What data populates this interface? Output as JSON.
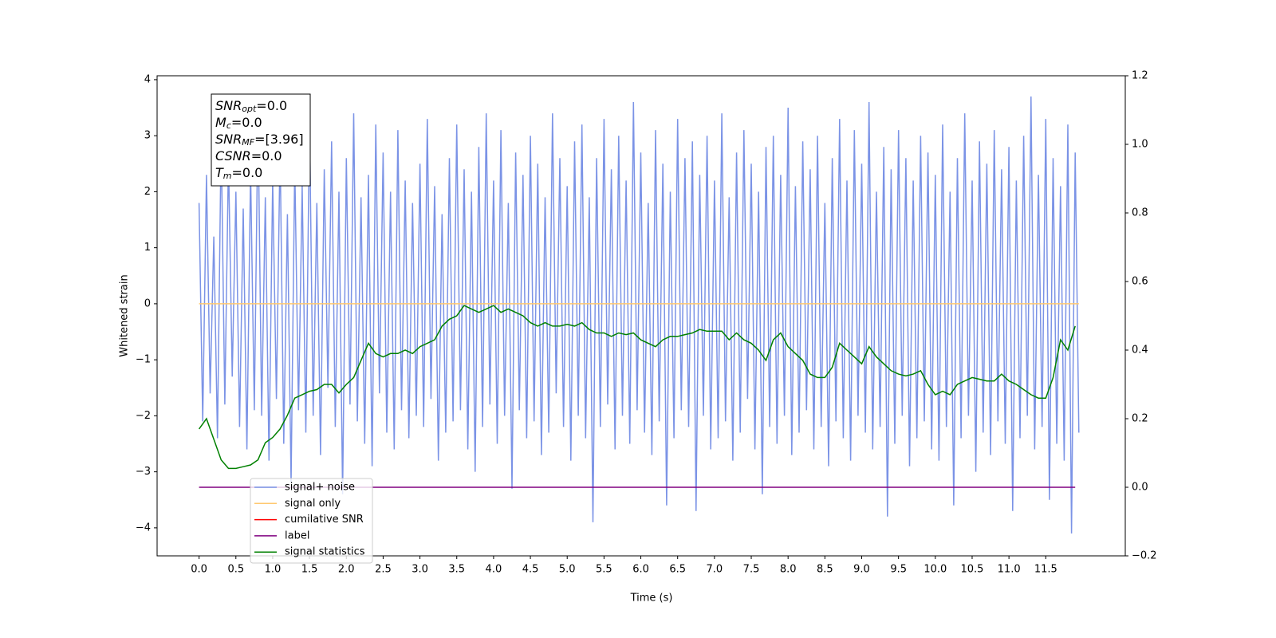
{
  "chart_data": {
    "type": "line",
    "xlabel": "Time (s)",
    "ylabel": "Whitened strain",
    "xlim": [
      -0.57,
      12.58
    ],
    "ylim": [
      -4.5,
      4.07
    ],
    "y2lim": [
      -0.2,
      1.2
    ],
    "xticks": [
      {
        "value": 0,
        "label": "0.0"
      },
      0.5,
      {
        "value": 1,
        "label": "1.0"
      },
      1.5,
      {
        "value": 2,
        "label": "2.0"
      },
      2.5,
      {
        "value": 3,
        "label": "3.0"
      },
      3.5,
      {
        "value": 4,
        "label": "4.0"
      },
      4.5,
      {
        "value": 5,
        "label": "5.0"
      },
      5.5,
      {
        "value": 6,
        "label": "6.0"
      },
      6.5,
      {
        "value": 7,
        "label": "7.0"
      },
      7.5,
      {
        "value": 8,
        "label": "8.0"
      },
      8.5,
      {
        "value": 9,
        "label": "9.0"
      },
      9.5,
      {
        "value": 10,
        "label": "10.0"
      },
      10.5,
      {
        "value": 11,
        "label": "11.0"
      },
      11.5
    ],
    "yticks": [
      {
        "value": -4,
        "label": "−4"
      },
      {
        "value": -3,
        "label": "−3"
      },
      {
        "value": -2,
        "label": "−2"
      },
      {
        "value": -1,
        "label": "−1"
      },
      0,
      1,
      2,
      3,
      4
    ],
    "y2ticks": [
      {
        "value": -0.2,
        "label": "−0.2"
      },
      {
        "value": 0,
        "label": "0.0"
      },
      0.2,
      0.4,
      0.6,
      0.8,
      {
        "value": 1,
        "label": "1.0"
      },
      1.2
    ],
    "annotation": [
      {
        "text": "SNR",
        "sub": "opt",
        "rest": "=0.0"
      },
      {
        "text": "M",
        "sub": "c",
        "rest": "=0.0"
      },
      {
        "text": "SNR",
        "sub": "MF",
        "rest": "=[3.96]"
      },
      {
        "text": "CSNR",
        "rest": "=0.0"
      },
      {
        "text": "T",
        "sub": "m",
        "rest": "=0.0"
      }
    ],
    "legend": "lower left",
    "x": [
      0,
      0.05,
      0.1,
      0.15,
      0.2,
      0.25,
      0.3,
      0.35,
      0.4,
      0.45,
      0.5,
      0.55,
      0.6,
      0.65,
      0.7,
      0.75,
      0.8,
      0.85,
      0.9,
      0.95,
      1,
      1.05,
      1.1,
      1.15,
      1.2,
      1.25,
      1.3,
      1.35,
      1.4,
      1.45,
      1.5,
      1.55,
      1.6,
      1.65,
      1.7,
      1.75,
      1.8,
      1.85,
      1.9,
      1.95,
      2,
      2.05,
      2.1,
      2.15,
      2.2,
      2.25,
      2.3,
      2.35,
      2.4,
      2.45,
      2.5,
      2.55,
      2.6,
      2.65,
      2.7,
      2.75,
      2.8,
      2.85,
      2.9,
      2.95,
      3,
      3.05,
      3.1,
      3.15,
      3.2,
      3.25,
      3.3,
      3.35,
      3.4,
      3.45,
      3.5,
      3.55,
      3.6,
      3.65,
      3.7,
      3.75,
      3.8,
      3.85,
      3.9,
      3.95,
      4,
      4.05,
      4.1,
      4.15,
      4.2,
      4.25,
      4.3,
      4.35,
      4.4,
      4.45,
      4.5,
      4.55,
      4.6,
      4.65,
      4.7,
      4.75,
      4.8,
      4.85,
      4.9,
      4.95,
      5,
      5.05,
      5.1,
      5.15,
      5.2,
      5.25,
      5.3,
      5.35,
      5.4,
      5.45,
      5.5,
      5.55,
      5.6,
      5.65,
      5.7,
      5.75,
      5.8,
      5.85,
      5.9,
      5.95,
      6,
      6.05,
      6.1,
      6.15,
      6.2,
      6.25,
      6.3,
      6.35,
      6.4,
      6.45,
      6.5,
      6.55,
      6.6,
      6.65,
      6.7,
      6.75,
      6.8,
      6.85,
      6.9,
      6.95,
      7,
      7.05,
      7.1,
      7.15,
      7.2,
      7.25,
      7.3,
      7.35,
      7.4,
      7.45,
      7.5,
      7.55,
      7.6,
      7.65,
      7.7,
      7.75,
      7.8,
      7.85,
      7.9,
      7.95,
      8,
      8.05,
      8.1,
      8.15,
      8.2,
      8.25,
      8.3,
      8.35,
      8.4,
      8.45,
      8.5,
      8.55,
      8.6,
      8.65,
      8.7,
      8.75,
      8.8,
      8.85,
      8.9,
      8.95,
      9,
      9.05,
      9.1,
      9.15,
      9.2,
      9.25,
      9.3,
      9.35,
      9.4,
      9.45,
      9.5,
      9.55,
      9.6,
      9.65,
      9.7,
      9.75,
      9.8,
      9.85,
      9.9,
      9.95,
      10,
      10.05,
      10.1,
      10.15,
      10.2,
      10.25,
      10.3,
      10.35,
      10.4,
      10.45,
      10.5,
      10.55,
      10.6,
      10.65,
      10.7,
      10.75,
      10.8,
      10.85,
      10.9,
      10.95,
      11,
      11.05,
      11.1,
      11.15,
      11.2,
      11.25,
      11.3,
      11.35,
      11.4,
      11.45,
      11.5,
      11.55,
      11.6,
      11.65,
      11.7,
      11.75,
      11.8,
      11.85,
      11.9,
      11.95
    ],
    "series": [
      {
        "name": "signal+ noise",
        "color": "#7b93e6",
        "values": [
          1.8,
          -2.1,
          2.3,
          -1.6,
          1.2,
          -2.4,
          3.0,
          -1.8,
          2.6,
          -1.3,
          2.0,
          -2.2,
          1.7,
          -2.6,
          2.4,
          -1.9,
          3.4,
          -2.0,
          1.9,
          -2.8,
          2.2,
          -1.7,
          2.8,
          -2.5,
          1.6,
          -3.2,
          2.5,
          -1.9,
          2.1,
          -2.3,
          3.3,
          -2.0,
          1.8,
          -2.7,
          2.4,
          -1.5,
          2.9,
          -2.2,
          2.0,
          -3.4,
          2.6,
          -1.8,
          3.4,
          -2.1,
          1.9,
          -2.5,
          2.3,
          -2.9,
          3.2,
          -1.6,
          2.7,
          -2.3,
          2.0,
          -2.6,
          3.1,
          -1.9,
          2.2,
          -2.4,
          1.8,
          -2.0,
          2.5,
          -2.2,
          3.3,
          -1.7,
          2.1,
          -2.8,
          1.6,
          -2.3,
          2.6,
          -2.1,
          3.2,
          -1.9,
          2.4,
          -2.6,
          2.0,
          -3.0,
          2.8,
          -2.2,
          3.4,
          -1.8,
          2.2,
          -2.5,
          3.1,
          -2.0,
          1.8,
          -3.3,
          2.7,
          -1.9,
          2.3,
          -2.4,
          3.0,
          -2.1,
          2.5,
          -2.7,
          1.9,
          -2.3,
          3.4,
          -1.6,
          2.6,
          -2.2,
          2.1,
          -2.8,
          2.9,
          -2.0,
          3.2,
          -2.4,
          1.9,
          -3.9,
          2.6,
          -2.2,
          3.3,
          -1.8,
          2.4,
          -2.6,
          3.0,
          -2.0,
          2.2,
          -2.5,
          3.6,
          -1.9,
          2.7,
          -2.3,
          1.8,
          -2.7,
          3.1,
          -2.1,
          2.5,
          -3.6,
          2.0,
          -2.4,
          3.3,
          -1.9,
          2.6,
          -2.2,
          2.9,
          -3.7,
          2.3,
          -2.0,
          3.0,
          -2.6,
          2.2,
          -2.4,
          3.4,
          -2.1,
          1.9,
          -2.8,
          2.7,
          -2.3,
          3.1,
          -1.7,
          2.5,
          -2.6,
          2.0,
          -3.4,
          2.8,
          -2.2,
          3.0,
          -2.5,
          2.3,
          -2.0,
          3.5,
          -2.7,
          2.1,
          -2.3,
          2.9,
          -1.9,
          2.4,
          -2.6,
          3.0,
          -2.2,
          1.8,
          -2.9,
          2.6,
          -2.1,
          3.3,
          -2.4,
          2.2,
          -2.8,
          3.1,
          -2.0,
          2.5,
          -2.3,
          3.6,
          -2.6,
          2.0,
          -2.2,
          2.8,
          -3.8,
          2.4,
          -2.5,
          3.1,
          -2.0,
          2.6,
          -2.9,
          2.2,
          -2.4,
          3.0,
          -2.1,
          2.7,
          -2.6,
          2.3,
          -2.8,
          3.2,
          -2.2,
          2.0,
          -3.6,
          2.6,
          -2.4,
          3.4,
          -2.0,
          2.2,
          -3.0,
          2.9,
          -2.3,
          2.5,
          -2.7,
          3.1,
          -2.1,
          2.4,
          -2.5,
          2.8,
          -3.7,
          2.2,
          -2.4,
          3.0,
          -2.0,
          3.7,
          -2.6,
          2.3,
          -2.2,
          3.3,
          -3.5,
          2.6,
          -2.5,
          2.1,
          -2.8,
          3.2,
          -4.1,
          2.7,
          -2.3
        ]
      },
      {
        "name": "signal only",
        "color": "#ffc870",
        "x": [
          0,
          11.95
        ],
        "values": [
          0,
          0
        ]
      },
      {
        "name": "cumilative SNR",
        "color": "#ff0000"
      },
      {
        "name": "label",
        "color": "#800080",
        "axis": "y2",
        "x": [
          0,
          11.9
        ],
        "values": [
          0,
          0
        ]
      },
      {
        "name": "signal statistics",
        "color": "#008000",
        "axis": "y2",
        "x": [
          0,
          0.1,
          0.2,
          0.3,
          0.4,
          0.5,
          0.6,
          0.7,
          0.8,
          0.9,
          1,
          1.1,
          1.2,
          1.3,
          1.4,
          1.5,
          1.6,
          1.7,
          1.8,
          1.9,
          2,
          2.1,
          2.2,
          2.3,
          2.4,
          2.5,
          2.6,
          2.7,
          2.8,
          2.9,
          3,
          3.1,
          3.2,
          3.3,
          3.4,
          3.5,
          3.6,
          3.7,
          3.8,
          3.9,
          4,
          4.1,
          4.2,
          4.3,
          4.4,
          4.5,
          4.6,
          4.7,
          4.8,
          4.9,
          5,
          5.1,
          5.2,
          5.3,
          5.4,
          5.5,
          5.6,
          5.7,
          5.8,
          5.9,
          6,
          6.1,
          6.2,
          6.3,
          6.4,
          6.5,
          6.6,
          6.7,
          6.8,
          6.9,
          7,
          7.1,
          7.2,
          7.3,
          7.4,
          7.5,
          7.6,
          7.7,
          7.8,
          7.9,
          8,
          8.1,
          8.2,
          8.3,
          8.4,
          8.5,
          8.6,
          8.7,
          8.8,
          8.9,
          9,
          9.1,
          9.2,
          9.3,
          9.4,
          9.5,
          9.6,
          9.7,
          9.8,
          9.9,
          10,
          10.1,
          10.2,
          10.3,
          10.4,
          10.5,
          10.6,
          10.7,
          10.8,
          10.9,
          11,
          11.1,
          11.2,
          11.3,
          11.4,
          11.5,
          11.6,
          11.7,
          11.8,
          11.9
        ],
        "values": [
          0.17,
          0.2,
          0.14,
          0.08,
          0.055,
          0.055,
          0.06,
          0.065,
          0.08,
          0.13,
          0.145,
          0.17,
          0.21,
          0.26,
          0.27,
          0.28,
          0.285,
          0.3,
          0.3,
          0.275,
          0.3,
          0.32,
          0.37,
          0.42,
          0.39,
          0.38,
          0.39,
          0.39,
          0.4,
          0.39,
          0.41,
          0.42,
          0.43,
          0.47,
          0.49,
          0.5,
          0.53,
          0.52,
          0.51,
          0.52,
          0.53,
          0.51,
          0.52,
          0.51,
          0.5,
          0.48,
          0.47,
          0.48,
          0.47,
          0.47,
          0.475,
          0.47,
          0.48,
          0.46,
          0.45,
          0.45,
          0.44,
          0.45,
          0.445,
          0.45,
          0.43,
          0.42,
          0.41,
          0.43,
          0.44,
          0.44,
          0.445,
          0.45,
          0.46,
          0.455,
          0.455,
          0.455,
          0.43,
          0.45,
          0.43,
          0.42,
          0.4,
          0.37,
          0.43,
          0.45,
          0.41,
          0.39,
          0.37,
          0.33,
          0.32,
          0.32,
          0.35,
          0.42,
          0.4,
          0.38,
          0.36,
          0.41,
          0.38,
          0.36,
          0.34,
          0.33,
          0.325,
          0.33,
          0.34,
          0.3,
          0.27,
          0.28,
          0.27,
          0.3,
          0.31,
          0.32,
          0.315,
          0.31,
          0.31,
          0.33,
          0.31,
          0.3,
          0.285,
          0.27,
          0.26,
          0.26,
          0.32,
          0.43,
          0.4,
          0.47
        ]
      }
    ]
  }
}
